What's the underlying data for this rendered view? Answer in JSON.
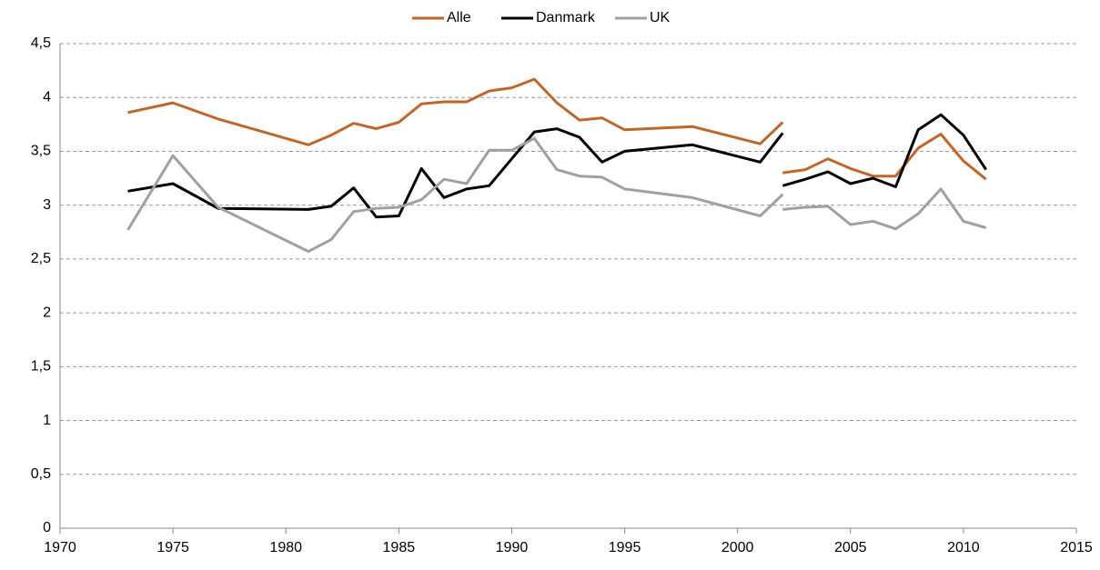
{
  "chart_data": {
    "type": "line",
    "x": [
      1973,
      1975,
      1977,
      1981,
      1982,
      1983,
      1984,
      1985,
      1986,
      1987,
      1988,
      1989,
      1990,
      1991,
      1992,
      1993,
      1994,
      1995,
      1998,
      2001,
      2002,
      2002,
      2002,
      2003,
      2004,
      2005,
      2006,
      2007,
      2008,
      2009,
      2010,
      2011
    ],
    "series": [
      {
        "name": "Alle",
        "color": "#c0662a",
        "values": [
          3.86,
          3.95,
          3.8,
          3.56,
          3.65,
          3.76,
          3.71,
          3.77,
          3.94,
          3.96,
          3.96,
          4.06,
          4.09,
          4.17,
          3.95,
          3.79,
          3.81,
          3.7,
          3.73,
          3.57,
          3.77,
          null,
          3.3,
          3.33,
          3.43,
          3.34,
          3.27,
          3.27,
          3.53,
          3.66,
          3.41,
          3.24
        ]
      },
      {
        "name": "Danmark",
        "color": "#000000",
        "values": [
          3.13,
          3.2,
          2.97,
          2.96,
          2.99,
          3.16,
          2.89,
          2.9,
          3.34,
          3.07,
          3.15,
          3.18,
          3.43,
          3.68,
          3.71,
          3.63,
          3.4,
          3.5,
          3.56,
          3.4,
          3.67,
          null,
          3.18,
          3.24,
          3.31,
          3.2,
          3.25,
          3.17,
          3.7,
          3.84,
          3.65,
          3.33
        ]
      },
      {
        "name": "UK",
        "color": "#a0a0a0",
        "values": [
          2.77,
          3.46,
          2.98,
          2.57,
          2.68,
          2.94,
          2.97,
          2.98,
          3.05,
          3.24,
          3.2,
          3.51,
          3.51,
          3.62,
          3.33,
          3.27,
          3.26,
          3.15,
          3.07,
          2.9,
          3.1,
          null,
          2.96,
          2.98,
          2.99,
          2.82,
          2.85,
          2.78,
          2.92,
          3.15,
          2.85,
          2.79
        ]
      }
    ],
    "xlim": [
      1970,
      2015
    ],
    "xticks": [
      1970,
      1975,
      1980,
      1985,
      1990,
      1995,
      2000,
      2005,
      2010,
      2015
    ],
    "ylim": [
      0,
      4.5
    ],
    "yticks": [
      0,
      {
        "value": 0.5,
        "label": "0,5"
      },
      1,
      {
        "value": 1.5,
        "label": "1,5"
      },
      2,
      {
        "value": 2.5,
        "label": "2,5"
      },
      3,
      {
        "value": 3.5,
        "label": "3,5"
      },
      4,
      {
        "value": 4.5,
        "label": "4,5"
      }
    ],
    "grid": true,
    "legend": "top"
  }
}
